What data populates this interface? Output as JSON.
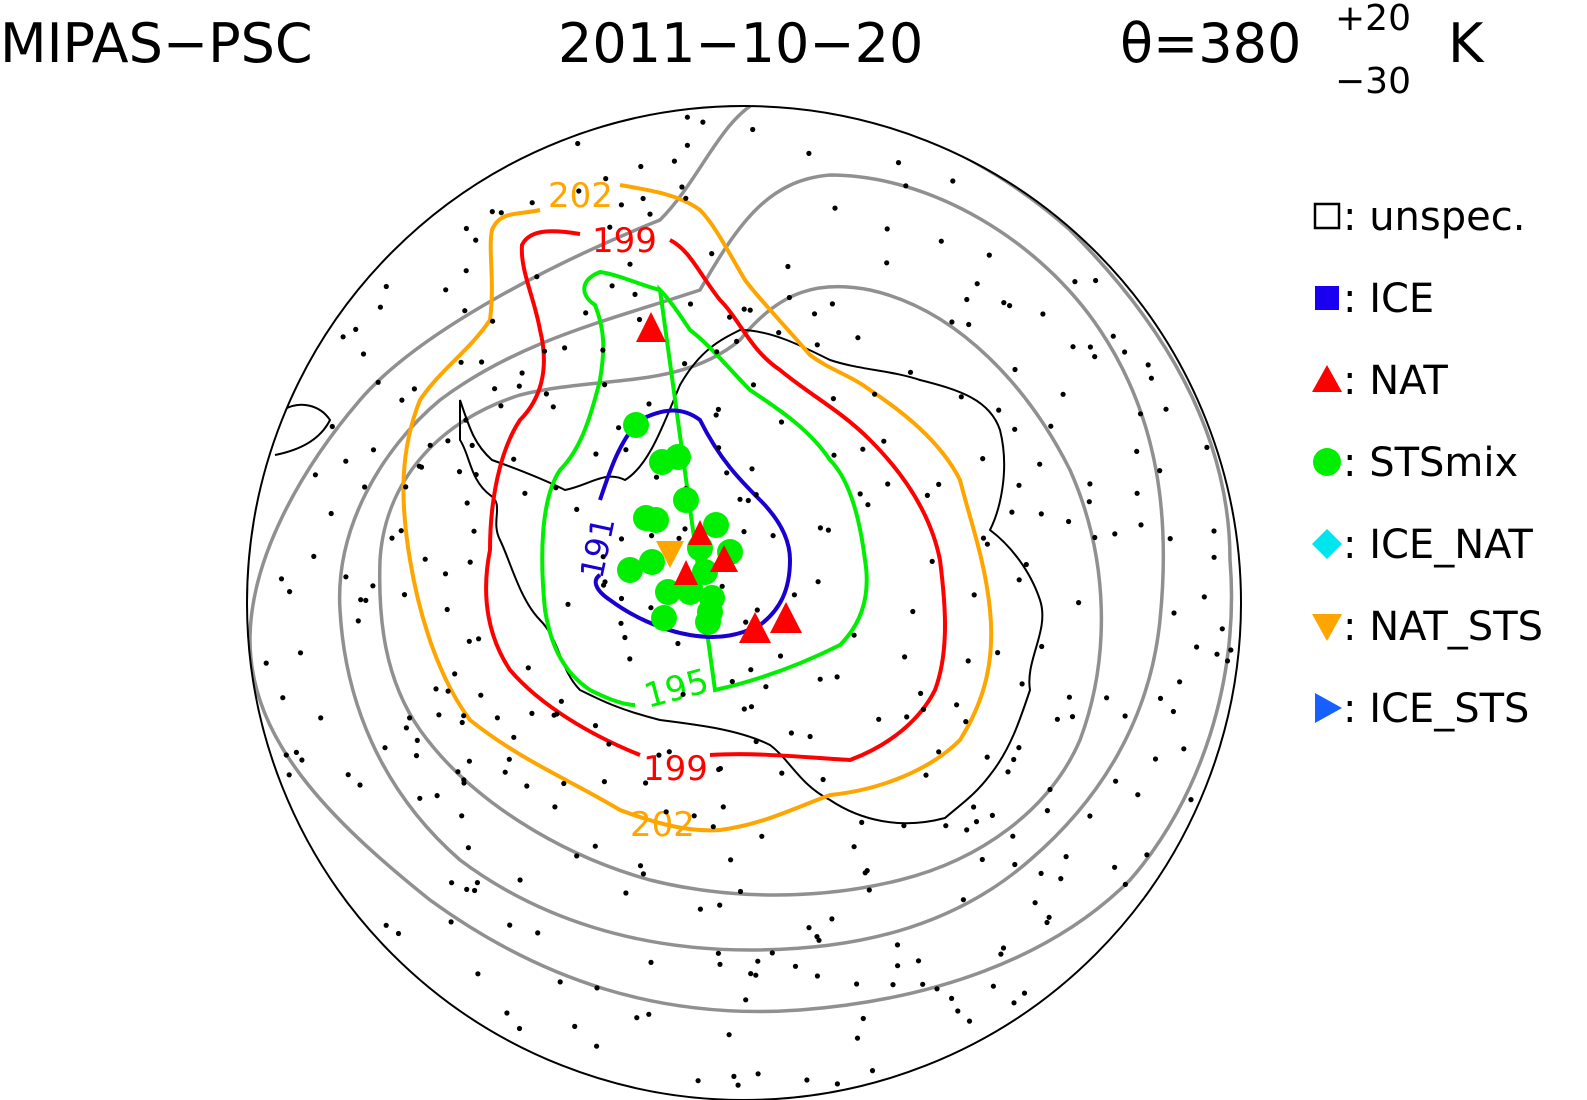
{
  "header": {
    "instrument": "MIPAS−PSC",
    "date": "2011−10−20",
    "theta_label": "θ=380",
    "theta_sup": "+20",
    "theta_sub": "−30",
    "theta_unit": "K"
  },
  "legend": [
    {
      "symbol": "open-square",
      "label": "unspec.",
      "color": "#000000"
    },
    {
      "symbol": "square",
      "label": "ICE",
      "color": "#1a00f0"
    },
    {
      "symbol": "triangle-up",
      "label": "NAT",
      "color": "#ff0000"
    },
    {
      "symbol": "circle",
      "label": "STSmix",
      "color": "#00ee00"
    },
    {
      "symbol": "diamond",
      "label": "ICE_NAT",
      "color": "#00e5ee"
    },
    {
      "symbol": "triangle-down",
      "label": "NAT_STS",
      "color": "#ffa500"
    },
    {
      "symbol": "triangle-right",
      "label": "ICE_STS",
      "color": "#1560ff"
    }
  ],
  "legend_separator": ":",
  "contours": [
    {
      "label": "191",
      "color": "#1a00d0"
    },
    {
      "label": "195",
      "color": "#00ee00"
    },
    {
      "label": "199",
      "color": "#ff0000"
    },
    {
      "label": "202",
      "color": "#ffa500"
    }
  ],
  "outer_contour_color": "#909090"
}
